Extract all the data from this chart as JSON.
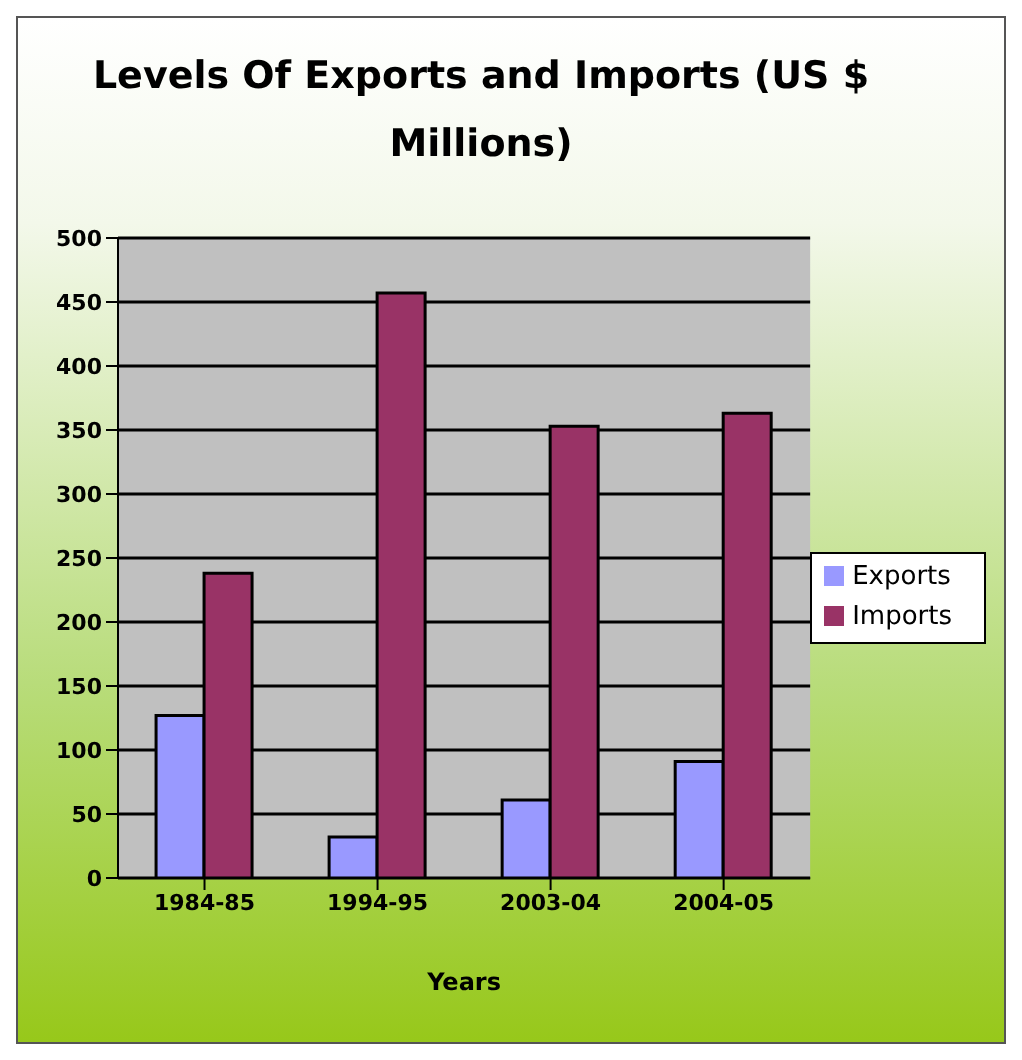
{
  "chart_data": {
    "type": "bar",
    "title": "Levels Of Exports and Imports (US $ Millions)",
    "xlabel": "Years",
    "categories": [
      "1984-85",
      "1994-95",
      "2003-04",
      "2004-05"
    ],
    "series": [
      {
        "name": "Exports",
        "color": "#9999ff",
        "values": [
          127,
          32,
          61,
          91
        ]
      },
      {
        "name": "Imports",
        "color": "#993366",
        "values": [
          238,
          457,
          353,
          363
        ]
      }
    ],
    "ylim": [
      0,
      500
    ],
    "yticks": [
      0,
      50,
      100,
      150,
      200,
      250,
      300,
      350,
      400,
      450,
      500
    ],
    "grid": "y",
    "legend": "right"
  }
}
